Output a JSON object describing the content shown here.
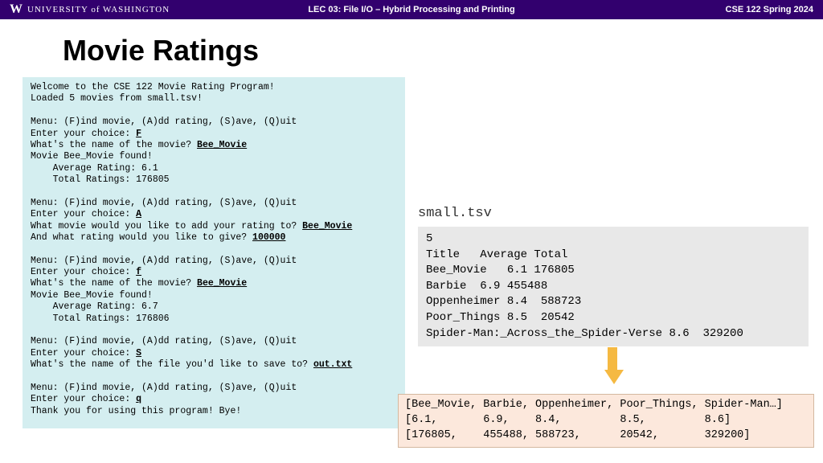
{
  "header": {
    "logo": "W",
    "university": "UNIVERSITY of WASHINGTON",
    "lecture": "LEC 03: File I/O – Hybrid Processing and Printing",
    "course": "CSE 122 Spring 2024"
  },
  "title": "Movie Ratings",
  "file_label": "small.tsv",
  "file_content": "5\nTitle   Average Total\nBee_Movie   6.1 176805\nBarbie  6.9 455488\nOppenheimer 8.4  588723\nPoor_Things 8.5  20542\nSpider-Man:_Across_the_Spider-Verse 8.6  329200",
  "arrays": "[Bee_Movie, Barbie, Oppenheimer, Poor_Things, Spider-Man…]\n[6.1,       6.9,    8.4,         8.5,         8.6]\n[176805,    455488, 588723,      20542,       329200]",
  "styling": {
    "header_bg": "#32006e",
    "console_bg": "#d4eef0",
    "file_bg": "#e8e8e8",
    "arrays_bg": "#fce8dc",
    "arrow_color": "#f5b942"
  },
  "console_segments": [
    {
      "t": "Welcome to the CSE 122 Movie Rating Program!\nLoaded 5 movies from small.tsv!\n\nMenu: (F)ind movie, (A)dd rating, (S)ave, (Q)uit\nEnter your choice: "
    },
    {
      "t": "F",
      "u": true
    },
    {
      "t": "\nWhat's the name of the movie? "
    },
    {
      "t": "Bee_Movie",
      "u": true
    },
    {
      "t": "\nMovie Bee_Movie found!\n    Average Rating: 6.1\n    Total Ratings: 176805\n\nMenu: (F)ind movie, (A)dd rating, (S)ave, (Q)uit\nEnter your choice: "
    },
    {
      "t": "A",
      "u": true
    },
    {
      "t": "\nWhat movie would you like to add your rating to? "
    },
    {
      "t": "Bee_Movie",
      "u": true
    },
    {
      "t": "\nAnd what rating would you like to give? "
    },
    {
      "t": "100000",
      "u": true
    },
    {
      "t": "\n\nMenu: (F)ind movie, (A)dd rating, (S)ave, (Q)uit\nEnter your choice: "
    },
    {
      "t": "f",
      "u": true
    },
    {
      "t": "\nWhat's the name of the movie? "
    },
    {
      "t": "Bee_Movie",
      "u": true
    },
    {
      "t": "\nMovie Bee_Movie found!\n    Average Rating: 6.7\n    Total Ratings: 176806\n\nMenu: (F)ind movie, (A)dd rating, (S)ave, (Q)uit\nEnter your choice: "
    },
    {
      "t": "S",
      "u": true
    },
    {
      "t": "\nWhat's the name of the file you'd like to save to? "
    },
    {
      "t": "out.txt",
      "u": true
    },
    {
      "t": "\n\nMenu: (F)ind movie, (A)dd rating, (S)ave, (Q)uit\nEnter your choice: "
    },
    {
      "t": "q",
      "u": true
    },
    {
      "t": "\nThank you for using this program! Bye!"
    }
  ]
}
